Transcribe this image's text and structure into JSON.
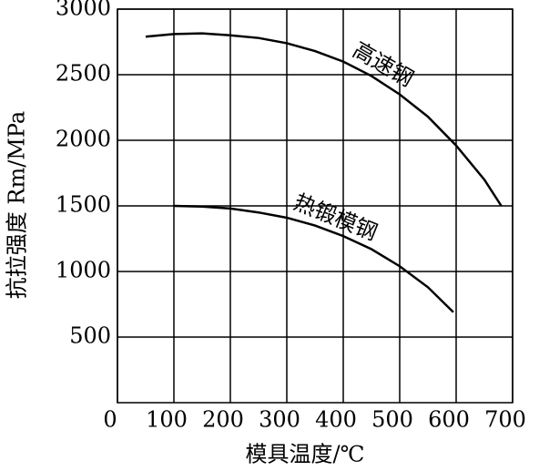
{
  "chart_data": {
    "type": "line",
    "xlabel": "模具温度/℃",
    "ylabel": "抗拉强度 Rm/MPa",
    "xlim": [
      0,
      700
    ],
    "xticks": [
      0,
      100,
      200,
      300,
      400,
      500,
      600,
      700
    ],
    "ylim": [
      0,
      3000
    ],
    "yticks": [
      500,
      1000,
      1500,
      2000,
      2500,
      3000
    ],
    "grid": true,
    "series": [
      {
        "name": "高速钢",
        "color": "#000000",
        "x": [
          50,
          100,
          150,
          200,
          250,
          300,
          350,
          400,
          450,
          500,
          550,
          600,
          650,
          680
        ],
        "values": [
          2790,
          2810,
          2815,
          2800,
          2780,
          2740,
          2680,
          2600,
          2490,
          2350,
          2180,
          1960,
          1700,
          1500
        ]
      },
      {
        "name": "热锻模钢",
        "color": "#000000",
        "x": [
          100,
          150,
          200,
          250,
          300,
          350,
          400,
          450,
          500,
          550,
          595
        ],
        "values": [
          1500,
          1495,
          1480,
          1450,
          1410,
          1350,
          1270,
          1170,
          1040,
          880,
          690
        ]
      }
    ]
  }
}
